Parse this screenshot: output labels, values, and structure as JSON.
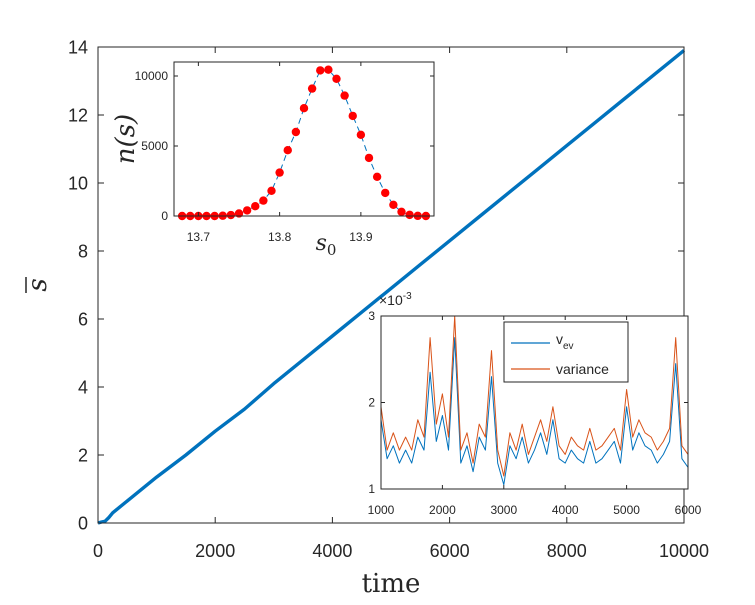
{
  "chart_data": [
    {
      "id": "main",
      "type": "line",
      "xlabel": "time",
      "ylabel": "s",
      "ylabel_bar": true,
      "xlim": [
        0,
        10000
      ],
      "ylim": [
        0,
        14
      ],
      "xticks": [
        0,
        2000,
        4000,
        6000,
        8000,
        10000
      ],
      "yticks": [
        0,
        2,
        4,
        6,
        8,
        10,
        12,
        14
      ],
      "grid": false,
      "series": [
        {
          "color": "#0072BD",
          "x": [
            0,
            60,
            120,
            180,
            250,
            500,
            1000,
            1500,
            2000,
            2500,
            3000,
            3500,
            4000,
            4500,
            5000,
            5500,
            6000,
            6500,
            7000,
            7500,
            8000,
            8500,
            9000,
            9500,
            10000
          ],
          "values": [
            0.0,
            0.03,
            0.05,
            0.15,
            0.3,
            0.65,
            1.35,
            2.0,
            2.7,
            3.35,
            4.1,
            4.8,
            5.5,
            6.2,
            6.9,
            7.6,
            8.3,
            9.0,
            9.7,
            10.4,
            11.1,
            11.8,
            12.5,
            13.2,
            13.9
          ]
        }
      ]
    },
    {
      "id": "inset-top",
      "type": "line",
      "xlabel": "s_0",
      "ylabel": "n(s)",
      "xlim": [
        13.67,
        13.99
      ],
      "ylim": [
        0,
        11000
      ],
      "xticks": [
        13.7,
        13.8,
        13.9
      ],
      "yticks": [
        0,
        5000,
        10000
      ],
      "grid": false,
      "series": [
        {
          "color": "#0072BD",
          "marker_color": "#FF0000",
          "line_style": "dashed",
          "x": [
            13.68,
            13.69,
            13.7,
            13.71,
            13.72,
            13.73,
            13.74,
            13.75,
            13.76,
            13.77,
            13.78,
            13.79,
            13.8,
            13.81,
            13.82,
            13.83,
            13.84,
            13.85,
            13.86,
            13.87,
            13.88,
            13.89,
            13.9,
            13.91,
            13.92,
            13.93,
            13.94,
            13.95,
            13.96,
            13.97,
            13.98
          ],
          "values": [
            0,
            0,
            0,
            0,
            0,
            20,
            70,
            180,
            400,
            700,
            1100,
            1800,
            3100,
            4700,
            6000,
            7700,
            9100,
            10400,
            10450,
            9800,
            8600,
            7150,
            5800,
            4150,
            2800,
            1650,
            800,
            300,
            80,
            10,
            0
          ]
        }
      ]
    },
    {
      "id": "inset-bottom",
      "type": "line",
      "xlim": [
        1000,
        6000
      ],
      "ylim": [
        1,
        3
      ],
      "xticks": [
        1000,
        2000,
        3000,
        4000,
        5000,
        6000
      ],
      "yticks": [
        1,
        2,
        3
      ],
      "y_exponent": "-3",
      "grid": false,
      "legend": "top-right",
      "series": [
        {
          "name": "v_ev",
          "name_main": "v",
          "name_sub": "ev",
          "color": "#0072BD",
          "x": [
            1000,
            1100,
            1200,
            1300,
            1400,
            1500,
            1600,
            1700,
            1800,
            1900,
            2000,
            2100,
            2200,
            2300,
            2400,
            2500,
            2600,
            2700,
            2800,
            2900,
            3000,
            3100,
            3200,
            3300,
            3400,
            3500,
            3600,
            3700,
            3800,
            3900,
            4000,
            4100,
            4200,
            4300,
            4400,
            4500,
            4600,
            4700,
            4800,
            4900,
            5000,
            5100,
            5200,
            5300,
            5400,
            5500,
            5600,
            5700,
            5800,
            5900,
            6000
          ],
          "values": [
            1.8,
            1.35,
            1.5,
            1.3,
            1.45,
            1.3,
            1.6,
            1.45,
            2.35,
            1.55,
            1.85,
            1.45,
            2.75,
            1.3,
            1.5,
            1.2,
            1.6,
            1.45,
            2.3,
            1.3,
            1.05,
            1.5,
            1.35,
            1.6,
            1.3,
            1.45,
            1.65,
            1.4,
            1.8,
            1.35,
            1.3,
            1.45,
            1.35,
            1.3,
            1.55,
            1.3,
            1.35,
            1.45,
            1.55,
            1.3,
            1.95,
            1.45,
            1.65,
            1.5,
            1.45,
            1.3,
            1.4,
            1.55,
            2.45,
            1.35,
            1.25
          ]
        },
        {
          "name": "variance",
          "color": "#D95319",
          "x": [
            1000,
            1100,
            1200,
            1300,
            1400,
            1500,
            1600,
            1700,
            1800,
            1900,
            2000,
            2100,
            2200,
            2300,
            2400,
            2500,
            2600,
            2700,
            2800,
            2900,
            3000,
            3100,
            3200,
            3300,
            3400,
            3500,
            3600,
            3700,
            3800,
            3900,
            4000,
            4100,
            4200,
            4300,
            4400,
            4500,
            4600,
            4700,
            4800,
            4900,
            5000,
            5100,
            5200,
            5300,
            5400,
            5500,
            5600,
            5700,
            5800,
            5900,
            6000
          ],
          "values": [
            1.95,
            1.45,
            1.65,
            1.45,
            1.6,
            1.45,
            1.8,
            1.6,
            2.75,
            1.75,
            2.1,
            1.6,
            3.0,
            1.45,
            1.65,
            1.3,
            1.75,
            1.6,
            2.6,
            1.45,
            1.15,
            1.65,
            1.45,
            1.75,
            1.4,
            1.6,
            1.8,
            1.55,
            1.95,
            1.5,
            1.4,
            1.6,
            1.5,
            1.45,
            1.7,
            1.45,
            1.5,
            1.6,
            1.7,
            1.45,
            2.15,
            1.6,
            1.8,
            1.65,
            1.6,
            1.45,
            1.55,
            1.7,
            2.75,
            1.5,
            1.4
          ]
        }
      ]
    }
  ]
}
